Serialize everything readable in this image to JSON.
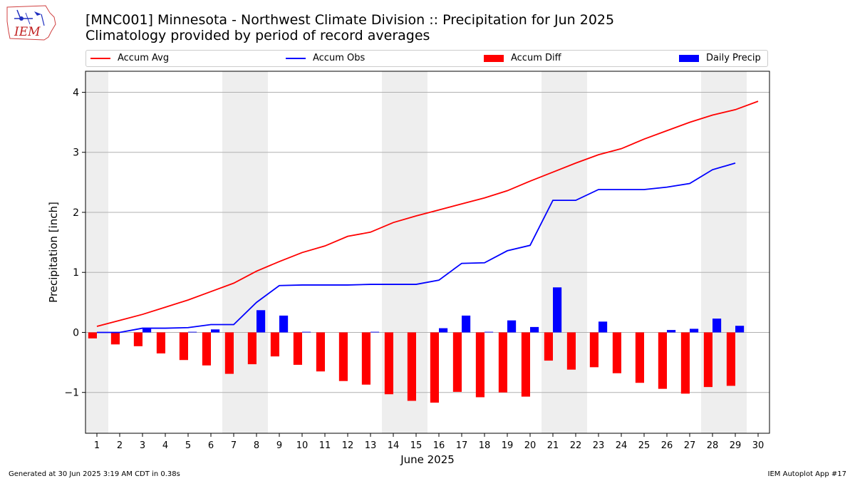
{
  "header": {
    "title_line1": "[MNC001] Minnesota - Northwest Climate Division :: Precipitation for Jun 2025",
    "title_line2": "Climatology provided by period of record averages",
    "logo_text": "IEM"
  },
  "legend": {
    "accum_avg": "Accum Avg",
    "accum_obs": "Accum Obs",
    "accum_diff": "Accum Diff",
    "daily_precip": "Daily Precip"
  },
  "footer": {
    "generated": "Generated at 30 Jun 2025 3:19 AM CDT in 0.38s",
    "app": "IEM Autoplot App #17"
  },
  "colors": {
    "accum_avg": "#ff0000",
    "accum_obs": "#0000ff",
    "accum_diff": "#ff0000",
    "daily_precip": "#0000ff",
    "weekend_shade": "#eeeeee",
    "grid": "#b0b0b0"
  },
  "chart_data": {
    "type": "bar",
    "xlabel": "June 2025",
    "ylabel": "Precipitation [inch]",
    "ylim": [
      -1.68,
      4.35
    ],
    "yticks": [
      -1,
      0,
      1,
      2,
      3,
      4
    ],
    "ytick_labels": [
      "−1",
      "0",
      "1",
      "2",
      "3",
      "4"
    ],
    "grid": "horizontal",
    "legend_position": "top",
    "days": [
      1,
      2,
      3,
      4,
      5,
      6,
      7,
      8,
      9,
      10,
      11,
      12,
      13,
      14,
      15,
      16,
      17,
      18,
      19,
      20,
      21,
      22,
      23,
      24,
      25,
      26,
      27,
      28,
      29,
      30
    ],
    "weekend_day_ranges": [
      [
        0.5,
        1.5
      ],
      [
        6.5,
        8.5
      ],
      [
        13.5,
        15.5
      ],
      [
        20.5,
        22.5
      ],
      [
        27.5,
        29.5
      ]
    ],
    "accum_avg": [
      0.1,
      0.2,
      0.3,
      0.42,
      0.54,
      0.68,
      0.82,
      1.02,
      1.18,
      1.33,
      1.44,
      1.6,
      1.67,
      1.83,
      1.94,
      2.04,
      2.14,
      2.24,
      2.36,
      2.52,
      2.67,
      2.82,
      2.96,
      3.06,
      3.22,
      3.36,
      3.5,
      3.62,
      3.71,
      3.85
    ],
    "accum_obs": [
      0.0,
      0.0,
      0.07,
      0.07,
      0.08,
      0.13,
      0.13,
      0.5,
      0.78,
      0.79,
      0.79,
      0.79,
      0.8,
      0.8,
      0.8,
      0.87,
      1.15,
      1.16,
      1.36,
      1.45,
      2.2,
      2.2,
      2.38,
      2.38,
      2.38,
      2.42,
      2.48,
      2.71,
      2.82
    ],
    "accum_diff": [
      -0.1,
      -0.2,
      -0.23,
      -0.35,
      -0.46,
      -0.55,
      -0.69,
      -0.53,
      -0.4,
      -0.54,
      -0.65,
      -0.81,
      -0.87,
      -1.03,
      -1.14,
      -1.17,
      -0.99,
      -1.08,
      -1.0,
      -1.07,
      -0.47,
      -0.62,
      -0.58,
      -0.68,
      -0.84,
      -0.94,
      -1.02,
      -0.91,
      -0.89
    ],
    "daily_precip": [
      0.0,
      0.0,
      0.07,
      0.0,
      0.01,
      0.05,
      0.0,
      0.37,
      0.28,
      0.01,
      0.0,
      0.0,
      0.01,
      0.0,
      0.0,
      0.07,
      0.28,
      0.01,
      0.2,
      0.09,
      0.75,
      0.0,
      0.18,
      0.0,
      0.0,
      0.04,
      0.06,
      0.23,
      0.11
    ]
  }
}
